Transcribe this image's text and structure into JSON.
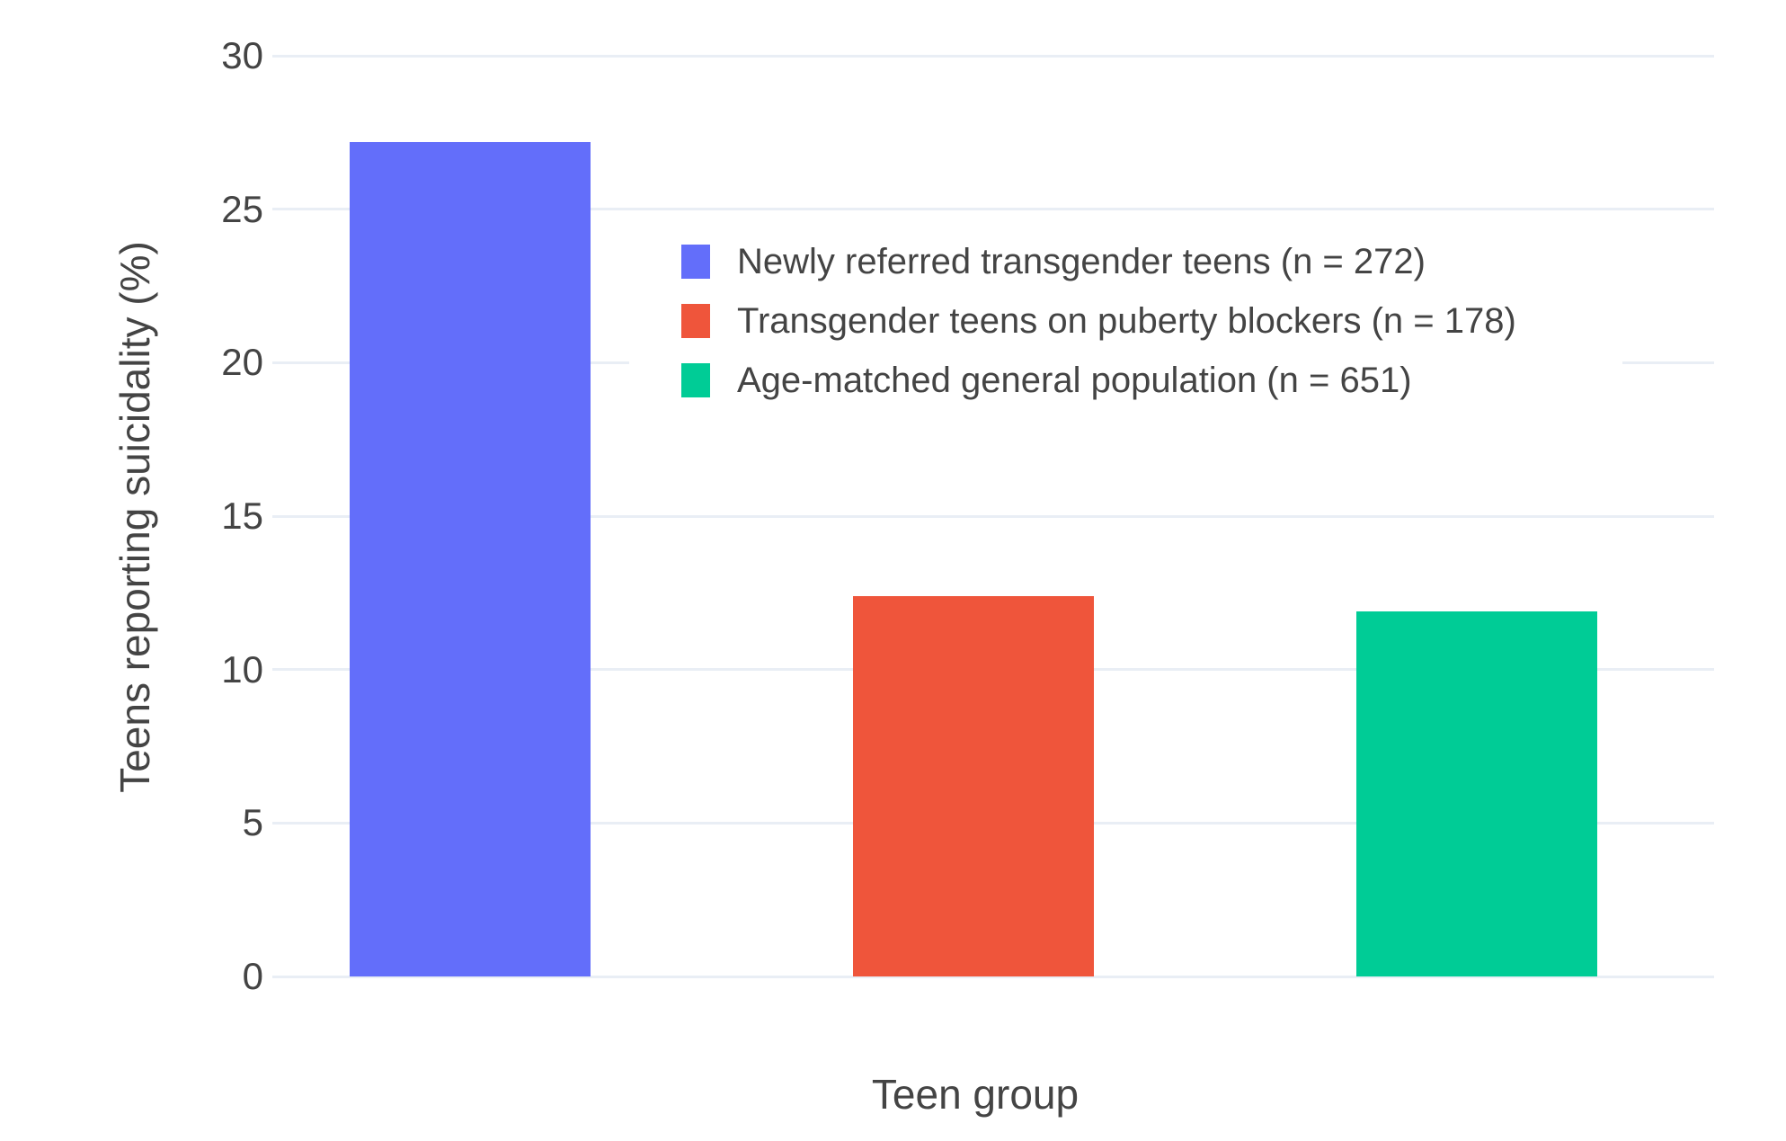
{
  "colors": {
    "background": "#ffffff",
    "grid": "#e9eef5",
    "text": "#444444",
    "bar_blue": "#636EFA",
    "bar_red": "#EF553B",
    "bar_green": "#00CC96"
  },
  "chart_data": {
    "type": "bar",
    "title": "",
    "xlabel": "Teen group",
    "ylabel": "Teens reporting suicidality (%)",
    "ylim": [
      0,
      30
    ],
    "y_ticks": [
      0,
      5,
      10,
      15,
      20,
      25,
      30
    ],
    "grid": true,
    "legend_position": "inside-top-center",
    "bars": [
      {
        "label": "Newly referred transgender teens (n = 272)",
        "value": 27.2,
        "color": "#636EFA"
      },
      {
        "label": "Transgender teens on puberty blockers (n = 178)",
        "value": 12.4,
        "color": "#EF553B"
      },
      {
        "label": "Age-matched general population (n = 651)",
        "value": 11.9,
        "color": "#00CC96"
      }
    ]
  }
}
